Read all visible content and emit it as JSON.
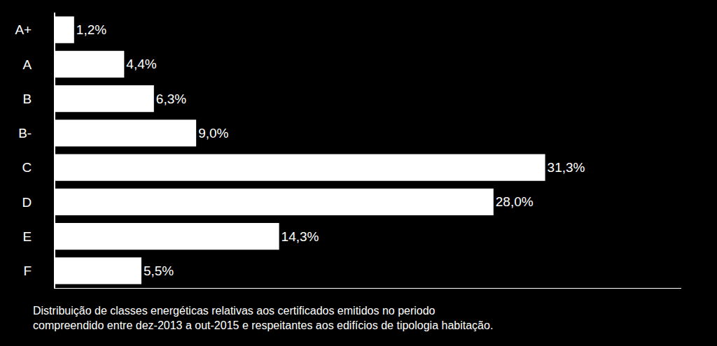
{
  "chart_data": {
    "type": "bar",
    "orientation": "horizontal",
    "categories": [
      "A+",
      "A",
      "B",
      "B-",
      "C",
      "D",
      "E",
      "F"
    ],
    "values": [
      1.2,
      4.4,
      6.3,
      9.0,
      31.3,
      28.0,
      14.3,
      5.5
    ],
    "value_labels": [
      "1,2%",
      "4,4%",
      "6,3%",
      "9,0%",
      "31,3%",
      "28,0%",
      "14,3%",
      "5,5%"
    ],
    "color": "#ffffff",
    "xlim": [
      0,
      40
    ],
    "data_labels": true,
    "tick_labels": "y",
    "grid": false,
    "annotations": [
      "Distribuição de classes energéticas relativas aos certificados emitidos no periodo",
      "compreendido entre dez-2013 a out-2015 e respeitantes aos edifícios de tipologia habitação."
    ]
  }
}
